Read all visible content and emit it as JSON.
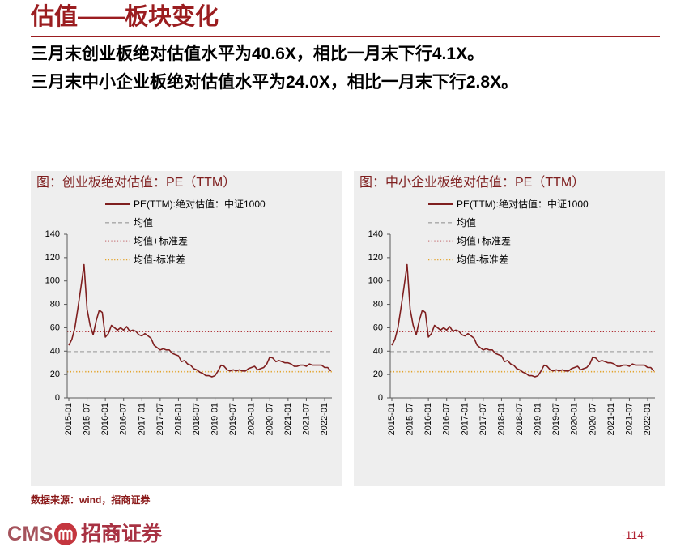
{
  "slide": {
    "title": "估值——板块变化",
    "lines": [
      "三月末创业板绝对估值水平为40.6X，相比一月末下行4.1X。",
      "三月末中小企业板绝对估值水平为24.0X，相比一月末下行2.8X。"
    ],
    "source": "数据来源：wind，招商证券",
    "page_number": "-114-",
    "accent_color": "#9B1D20"
  },
  "logo": {
    "text": "CMS",
    "name": "招商证券",
    "icon": "cms-emblem-icon"
  },
  "chart_data": [
    {
      "type": "line",
      "title": "图：创业板绝对估值：PE（TTM）",
      "x": [
        "2015-01",
        "2015-02",
        "2015-03",
        "2015-04",
        "2015-05",
        "2015-06",
        "2015-07",
        "2015-08",
        "2015-09",
        "2015-10",
        "2015-11",
        "2015-12",
        "2016-01",
        "2016-02",
        "2016-03",
        "2016-04",
        "2016-05",
        "2016-06",
        "2016-07",
        "2016-08",
        "2016-09",
        "2016-10",
        "2016-11",
        "2016-12",
        "2017-01",
        "2017-02",
        "2017-03",
        "2017-04",
        "2017-05",
        "2017-06",
        "2017-07",
        "2017-08",
        "2017-09",
        "2017-10",
        "2017-11",
        "2017-12",
        "2018-01",
        "2018-02",
        "2018-03",
        "2018-04",
        "2018-05",
        "2018-06",
        "2018-07",
        "2018-08",
        "2018-09",
        "2018-10",
        "2018-11",
        "2018-12",
        "2019-01",
        "2019-02",
        "2019-03",
        "2019-04",
        "2019-05",
        "2019-06",
        "2019-07",
        "2019-08",
        "2019-09",
        "2019-10",
        "2019-11",
        "2019-12",
        "2020-01",
        "2020-02",
        "2020-03",
        "2020-04",
        "2020-05",
        "2020-06",
        "2020-07",
        "2020-08",
        "2020-09",
        "2020-10",
        "2020-11",
        "2020-12",
        "2021-01",
        "2021-02",
        "2021-03",
        "2021-04",
        "2021-05",
        "2021-06",
        "2021-07",
        "2021-08",
        "2021-09",
        "2021-10",
        "2021-11",
        "2021-12",
        "2022-01",
        "2022-02",
        "2022-03"
      ],
      "x_ticks": [
        "2015-01",
        "2015-07",
        "2016-01",
        "2016-07",
        "2017-01",
        "2017-07",
        "2018-01",
        "2018-07",
        "2019-01",
        "2019-07",
        "2020-01",
        "2020-07",
        "2021-01",
        "2021-07",
        "2022-01"
      ],
      "ylim": [
        0,
        140
      ],
      "y_ticks": [
        0,
        20,
        40,
        60,
        80,
        100,
        120,
        140
      ],
      "grid": false,
      "legend": "top-left",
      "series": [
        {
          "name": "PE(TTM):绝对估值：中证1000",
          "color": "#7F1F1F",
          "values": [
            45,
            50,
            60,
            77,
            95,
            114,
            76,
            62,
            54,
            66,
            75,
            73,
            52,
            55,
            62,
            60,
            58,
            60,
            58,
            61,
            57,
            58,
            57,
            54,
            53,
            55,
            53,
            51,
            45,
            43,
            41,
            42,
            41,
            41,
            38,
            37,
            36,
            31,
            32,
            29,
            28,
            25,
            24,
            22,
            21,
            19,
            19,
            18,
            19,
            23,
            28,
            27,
            24,
            23,
            24,
            23,
            24,
            23,
            23,
            25,
            26,
            27,
            24,
            25,
            26,
            29,
            35,
            34,
            31,
            32,
            31,
            30,
            30,
            29,
            27,
            27,
            28,
            28,
            27,
            29,
            28,
            28,
            28,
            28,
            26,
            26,
            23
          ]
        }
      ],
      "reference_lines": [
        {
          "name": "均值",
          "value": 39.6,
          "color": "#A6A6A6",
          "style": "dashed"
        },
        {
          "name": "均值+标准差",
          "value": 56.8,
          "color": "#A50F15",
          "style": "dotted"
        },
        {
          "name": "均值-标准差",
          "value": 22.4,
          "color": "#E3A32A",
          "style": "dotted"
        }
      ]
    },
    {
      "type": "line",
      "title": "图：中小企业板绝对估值：PE（TTM）",
      "x": [
        "2015-01",
        "2015-02",
        "2015-03",
        "2015-04",
        "2015-05",
        "2015-06",
        "2015-07",
        "2015-08",
        "2015-09",
        "2015-10",
        "2015-11",
        "2015-12",
        "2016-01",
        "2016-02",
        "2016-03",
        "2016-04",
        "2016-05",
        "2016-06",
        "2016-07",
        "2016-08",
        "2016-09",
        "2016-10",
        "2016-11",
        "2016-12",
        "2017-01",
        "2017-02",
        "2017-03",
        "2017-04",
        "2017-05",
        "2017-06",
        "2017-07",
        "2017-08",
        "2017-09",
        "2017-10",
        "2017-11",
        "2017-12",
        "2018-01",
        "2018-02",
        "2018-03",
        "2018-04",
        "2018-05",
        "2018-06",
        "2018-07",
        "2018-08",
        "2018-09",
        "2018-10",
        "2018-11",
        "2018-12",
        "2019-01",
        "2019-02",
        "2019-03",
        "2019-04",
        "2019-05",
        "2019-06",
        "2019-07",
        "2019-08",
        "2019-09",
        "2019-10",
        "2019-11",
        "2019-12",
        "2020-01",
        "2020-02",
        "2020-03",
        "2020-04",
        "2020-05",
        "2020-06",
        "2020-07",
        "2020-08",
        "2020-09",
        "2020-10",
        "2020-11",
        "2020-12",
        "2021-01",
        "2021-02",
        "2021-03",
        "2021-04",
        "2021-05",
        "2021-06",
        "2021-07",
        "2021-08",
        "2021-09",
        "2021-10",
        "2021-11",
        "2021-12",
        "2022-01",
        "2022-02",
        "2022-03"
      ],
      "x_ticks": [
        "2015-01",
        "2015-07",
        "2016-01",
        "2016-07",
        "2017-01",
        "2017-07",
        "2018-01",
        "2018-07",
        "2019-01",
        "2019-07",
        "2020-01",
        "2020-07",
        "2021-01",
        "2021-07",
        "2022-01"
      ],
      "ylim": [
        0,
        140
      ],
      "y_ticks": [
        0,
        20,
        40,
        60,
        80,
        100,
        120,
        140
      ],
      "grid": false,
      "legend": "top-left",
      "series": [
        {
          "name": "PE(TTM):绝对估值：中证1000",
          "color": "#7F1F1F",
          "values": [
            45,
            50,
            60,
            77,
            95,
            114,
            76,
            62,
            54,
            66,
            75,
            73,
            52,
            55,
            62,
            60,
            58,
            60,
            58,
            61,
            57,
            58,
            57,
            54,
            53,
            55,
            53,
            51,
            45,
            43,
            41,
            42,
            41,
            41,
            38,
            37,
            36,
            31,
            32,
            29,
            28,
            25,
            24,
            22,
            21,
            19,
            19,
            18,
            19,
            23,
            28,
            27,
            24,
            23,
            24,
            23,
            24,
            23,
            23,
            25,
            26,
            27,
            24,
            25,
            26,
            29,
            35,
            34,
            31,
            32,
            31,
            30,
            30,
            29,
            27,
            27,
            28,
            28,
            27,
            29,
            28,
            28,
            28,
            28,
            26,
            26,
            23
          ]
        }
      ],
      "reference_lines": [
        {
          "name": "均值",
          "value": 39.6,
          "color": "#A6A6A6",
          "style": "dashed"
        },
        {
          "name": "均值+标准差",
          "value": 56.8,
          "color": "#A50F15",
          "style": "dotted"
        },
        {
          "name": "均值-标准差",
          "value": 22.4,
          "color": "#E3A32A",
          "style": "dotted"
        }
      ]
    }
  ]
}
